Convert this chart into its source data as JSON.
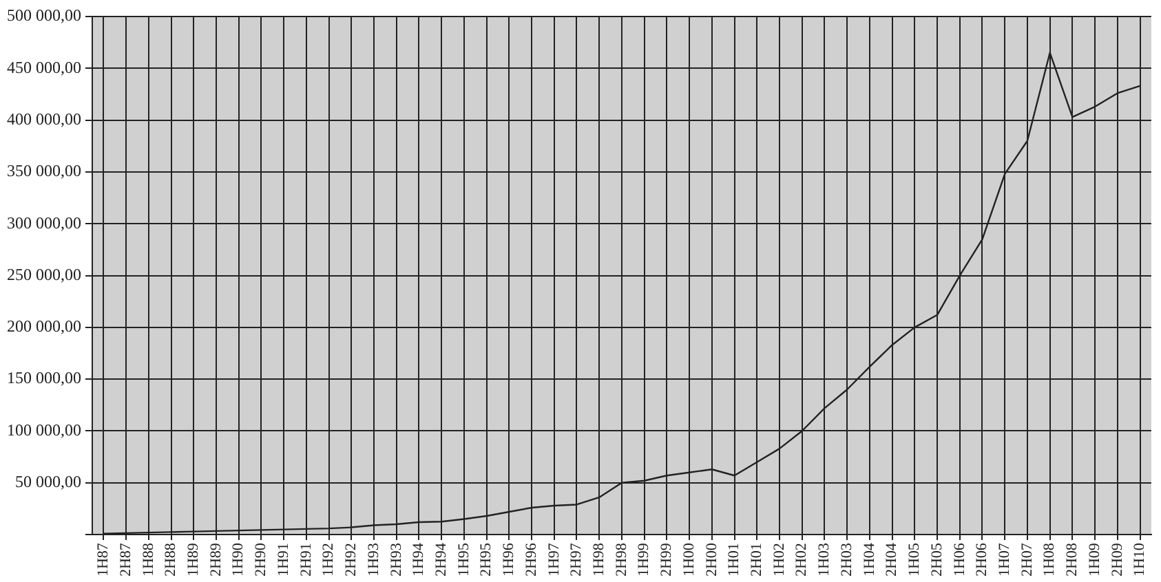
{
  "chart_data": {
    "type": "line",
    "categories": [
      "1H87",
      "2H87",
      "1H88",
      "2H88",
      "1H89",
      "2H89",
      "1H90",
      "2H90",
      "1H91",
      "2H91",
      "1H92",
      "2H92",
      "1H93",
      "2H93",
      "1H94",
      "2H94",
      "1H95",
      "2H95",
      "1H96",
      "2H96",
      "1H97",
      "2H97",
      "1H98",
      "2H98",
      "1H99",
      "2H99",
      "1H00",
      "2H00",
      "1H01",
      "2H01",
      "1H02",
      "2H02",
      "1H03",
      "2H03",
      "1H04",
      "2H04",
      "1H05",
      "2H05",
      "1H06",
      "2H06",
      "1H07",
      "2H07",
      "1H08",
      "2H08",
      "1H09",
      "2H09",
      "1H10"
    ],
    "series": [
      {
        "color": "#222222",
        "values": [
          1000,
          1500,
          2000,
          2500,
          3000,
          3500,
          4000,
          4500,
          5000,
          5500,
          6000,
          7000,
          9000,
          10000,
          12000,
          12500,
          15000,
          18000,
          22000,
          26000,
          28000,
          29000,
          36000,
          50000,
          52000,
          57000,
          60000,
          63000,
          57000,
          70000,
          83000,
          100000,
          122000,
          140000,
          162000,
          183000,
          200000,
          212000,
          250000,
          285000,
          348000,
          380000,
          465000,
          403000,
          413000,
          426000,
          433000
        ]
      }
    ],
    "ylim": [
      0,
      500000
    ],
    "yticks": [
      {
        "value": 0,
        "label": null
      },
      {
        "value": 50000,
        "label": "50 000,00"
      },
      {
        "value": 100000,
        "label": "100 000,00"
      },
      {
        "value": 150000,
        "label": "150 000,00"
      },
      {
        "value": 200000,
        "label": "200 000,00"
      },
      {
        "value": 250000,
        "label": "250 000,00"
      },
      {
        "value": 300000,
        "label": "300 000,00"
      },
      {
        "value": 350000,
        "label": "350 000,00"
      },
      {
        "value": 400000,
        "label": "400 000,00"
      },
      {
        "value": 450000,
        "label": "450 000,00"
      },
      {
        "value": 500000,
        "label": "500 000,00"
      }
    ],
    "grid": true,
    "legend": false,
    "marker": "none",
    "line_style": "solid"
  }
}
